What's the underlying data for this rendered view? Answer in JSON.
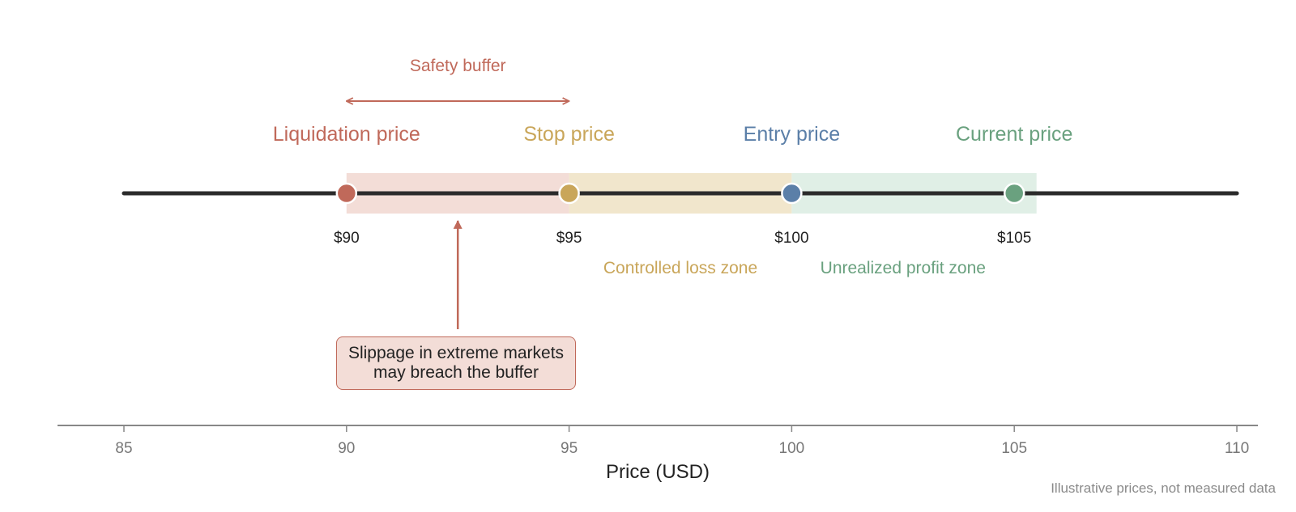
{
  "chart_data": {
    "type": "annotated-number-line",
    "title": "",
    "xlabel": "Price (USD)",
    "xlim": [
      83.5,
      110.5
    ],
    "xticks": [
      85,
      90,
      95,
      100,
      105,
      110
    ],
    "points": [
      {
        "name": "Liquidation price",
        "value": 90,
        "label": "$90",
        "color": "#c0695a"
      },
      {
        "name": "Stop price",
        "value": 95,
        "label": "$95",
        "color": "#c9a65a"
      },
      {
        "name": "Entry price",
        "value": 100,
        "label": "$100",
        "color": "#5b7fa8"
      },
      {
        "name": "Current price",
        "value": 105,
        "label": "$105",
        "color": "#6aa17f"
      }
    ],
    "zones": [
      {
        "name": "",
        "from": 90,
        "to": 95,
        "color": "#f3ddd7"
      },
      {
        "name": "Controlled loss zone",
        "from": 95,
        "to": 100,
        "color": "#f1e6cc"
      },
      {
        "name": "Unrealized profit zone",
        "from": 100,
        "to": 105.5,
        "color": "#e0efe6"
      }
    ],
    "buffer": {
      "label": "Safety buffer",
      "from": 90,
      "to": 95,
      "color": "#c0695a"
    },
    "annotation": {
      "lines": [
        "Slippage in extreme markets",
        "may breach the buffer"
      ],
      "points_to": 92.5
    },
    "footnote": "Illustrative prices, not measured data"
  }
}
